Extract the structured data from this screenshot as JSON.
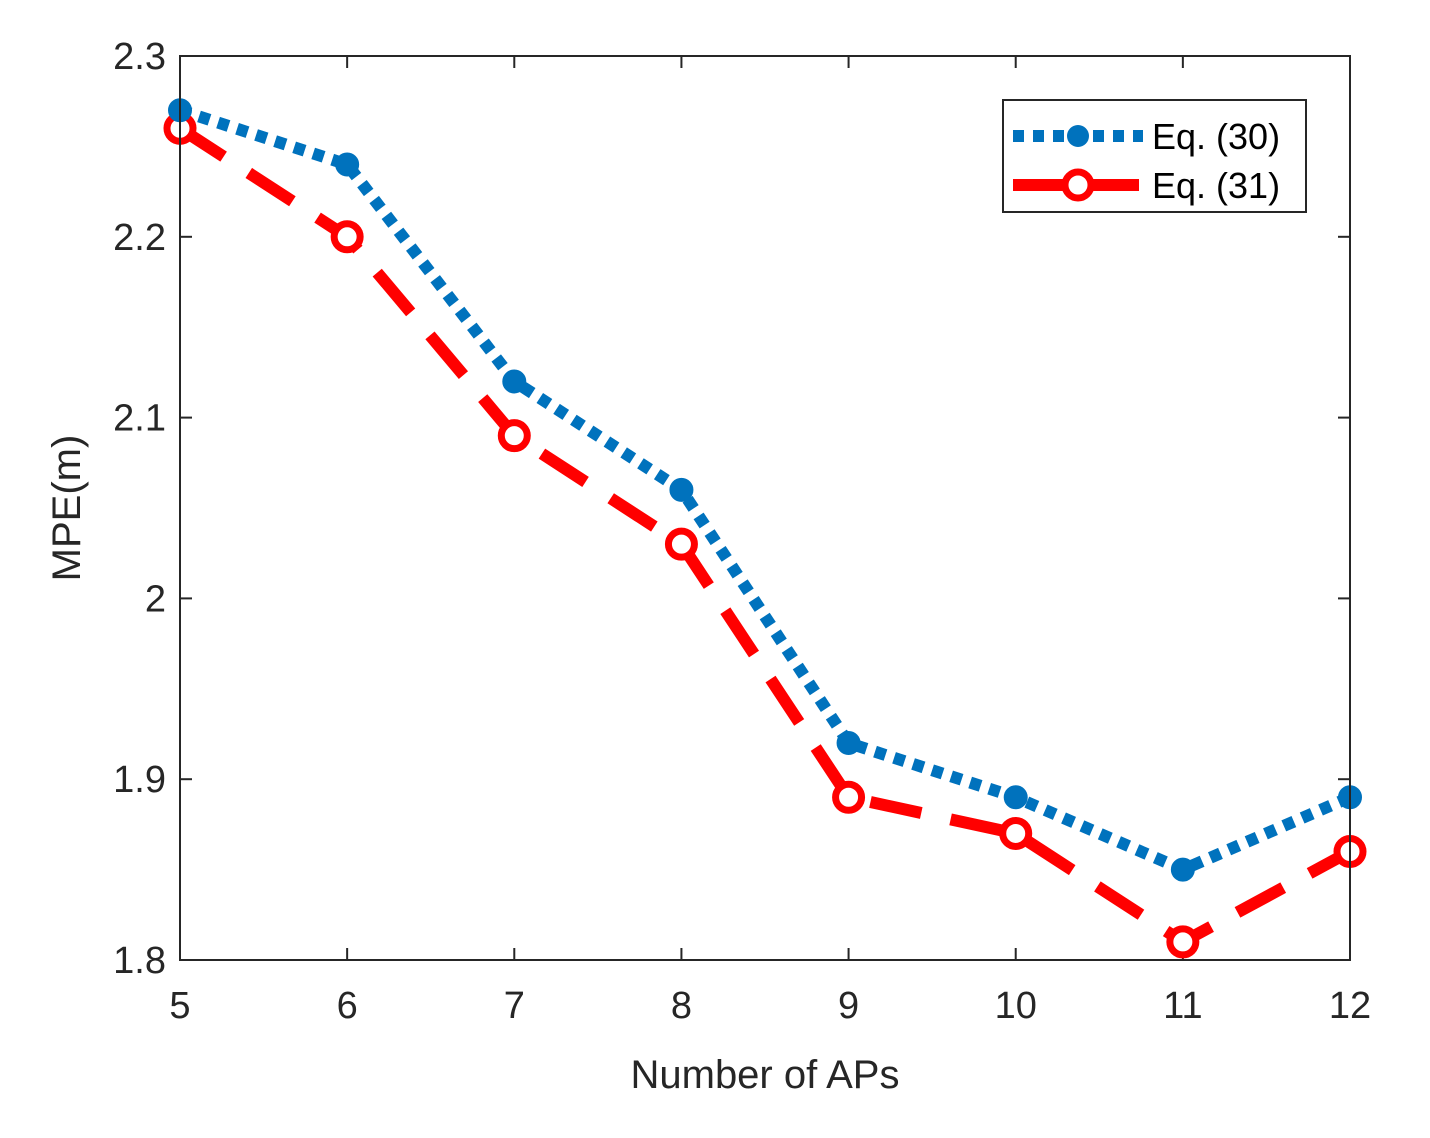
{
  "chart_data": {
    "type": "line",
    "title": "",
    "xlabel": "Number of APs",
    "ylabel": "MPE(m)",
    "x": [
      5,
      6,
      7,
      8,
      9,
      10,
      11,
      12
    ],
    "xlim": [
      5,
      12
    ],
    "ylim": [
      1.8,
      2.3
    ],
    "xticks": [
      "5",
      "6",
      "7",
      "8",
      "9",
      "10",
      "11",
      "12"
    ],
    "yticks": [
      "1.8",
      "1.9",
      "2",
      "2.1",
      "2.2",
      "2.3"
    ],
    "grid": false,
    "legend_position": "top-right",
    "series": [
      {
        "name": "Eq. (30)",
        "values": [
          2.27,
          2.24,
          2.12,
          2.06,
          1.92,
          1.89,
          1.85,
          1.89
        ],
        "color": "#0072bd",
        "line_style": "dotted",
        "marker": "filled-circle"
      },
      {
        "name": "Eq. (31)",
        "values": [
          2.26,
          2.2,
          2.09,
          2.03,
          1.89,
          1.87,
          1.81,
          1.86
        ],
        "color": "#ff0000",
        "line_style": "dashed",
        "marker": "open-circle"
      }
    ]
  }
}
